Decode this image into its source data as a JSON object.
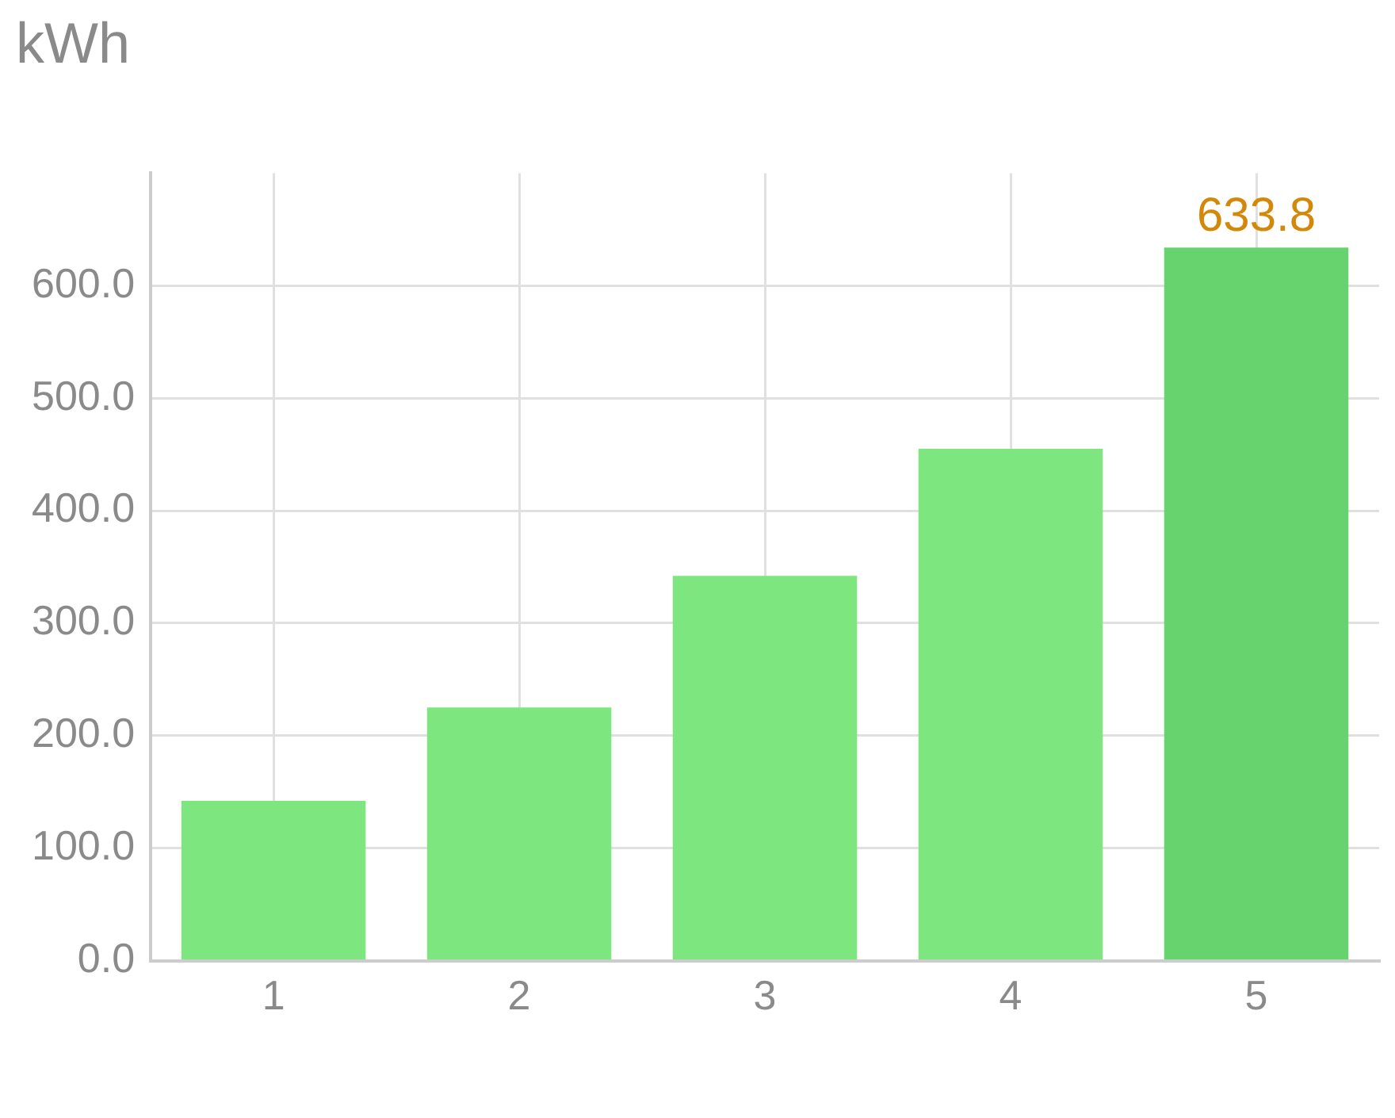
{
  "chart_data": {
    "type": "bar",
    "title": "kWh",
    "categories": [
      "1",
      "2",
      "3",
      "4",
      "5"
    ],
    "values": [
      142,
      225,
      342,
      455,
      633.8
    ],
    "colors": [
      "#7ee67f",
      "#7ee67f",
      "#7ee67f",
      "#7ee67f",
      "#66d36e"
    ],
    "value_labels": [
      null,
      null,
      null,
      null,
      "633.8"
    ],
    "ylim": [
      0,
      700
    ],
    "yticks": [
      {
        "value": 0,
        "label": "0.0"
      },
      {
        "value": 100,
        "label": "100.0"
      },
      {
        "value": 200,
        "label": "200.0"
      },
      {
        "value": 300,
        "label": "300.0"
      },
      {
        "value": 400,
        "label": "400.0"
      },
      {
        "value": 500,
        "label": "500.0"
      },
      {
        "value": 600,
        "label": "600.0"
      }
    ],
    "grid": true,
    "legend": false
  }
}
